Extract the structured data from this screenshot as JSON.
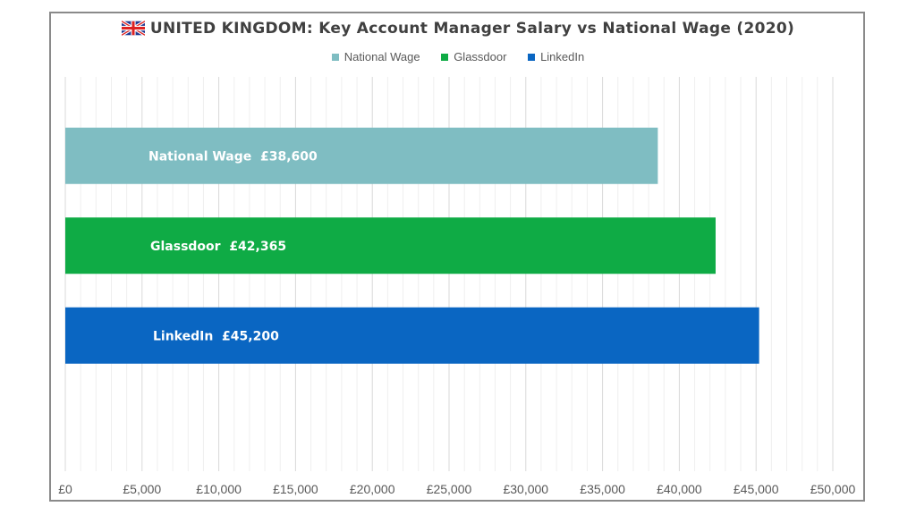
{
  "chart_data": {
    "type": "bar",
    "orientation": "horizontal",
    "title": "UNITED KINGDOM: Key Account Manager Salary vs National Wage (2020)",
    "title_icon": "uk-flag-icon",
    "categories": [
      "National Wage",
      "Glassdoor",
      "LinkedIn"
    ],
    "values": [
      38600,
      42365,
      45200
    ],
    "data_labels": [
      "National Wage  £38,600",
      "Glassdoor  £42,365",
      "LinkedIn  £45,200"
    ],
    "colors": [
      "#7fbdc2",
      "#0fab45",
      "#0a66c2"
    ],
    "xlim": [
      0,
      50000
    ],
    "xticks": [
      0,
      5000,
      10000,
      15000,
      20000,
      25000,
      30000,
      35000,
      40000,
      45000,
      50000
    ],
    "xtick_labels": [
      "£0",
      "£5,000",
      "£10,000",
      "£15,000",
      "£20,000",
      "£25,000",
      "£30,000",
      "£35,000",
      "£40,000",
      "£45,000",
      "£50,000"
    ],
    "minor_grid_step": 1000,
    "grid": true,
    "legend": {
      "position": "top",
      "entries": [
        "National Wage",
        "Glassdoor",
        "LinkedIn"
      ]
    },
    "xlabel": "",
    "ylabel": ""
  }
}
